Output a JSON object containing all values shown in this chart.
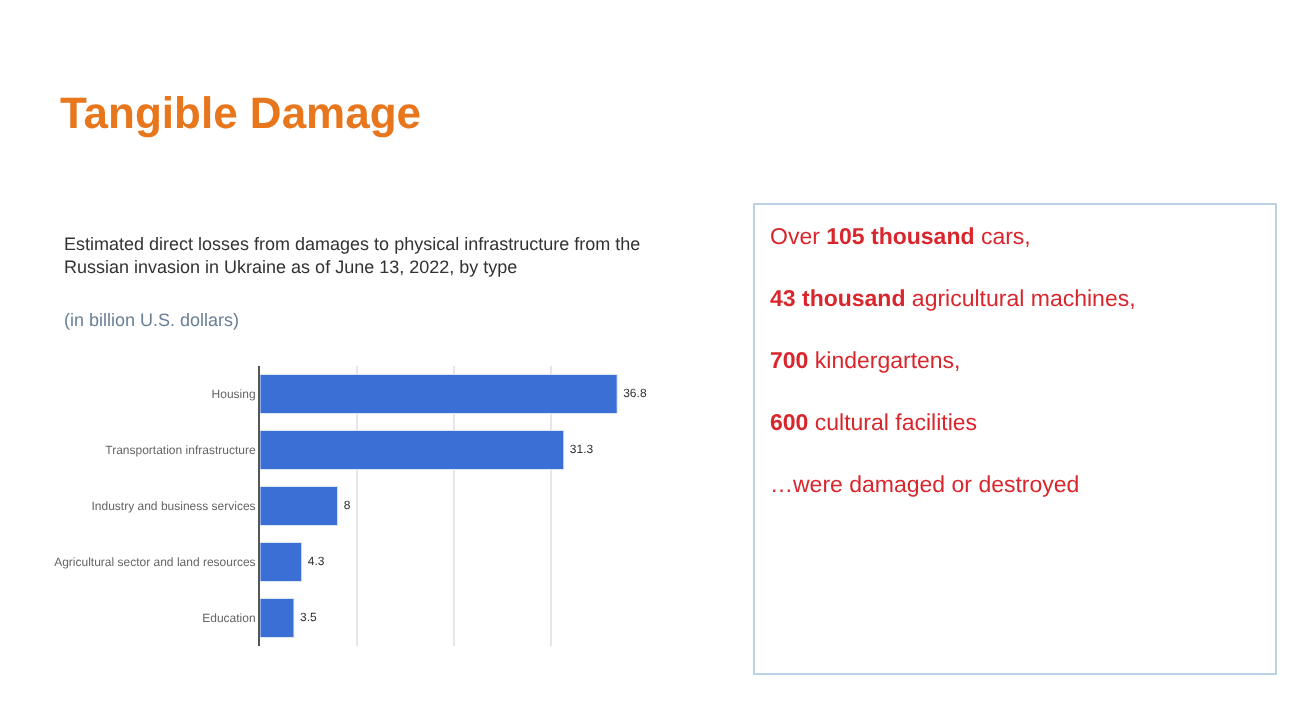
{
  "chart_data": [
    {
      "type": "bar",
      "orientation": "horizontal",
      "title": "Estimated direct losses from damages to physical infrastructure from the Russian invasion in Ukraine as of June 13, 2022, by type",
      "subtitle": "(in billion U.S. dollars)",
      "annotations": [
        "Tangible Damage"
      ],
      "categories": [
        "Housing",
        "Transportation infrastructure",
        "Industry and business services",
        "Agricultural sector and land resources",
        "Education"
      ],
      "values": [
        36.8,
        31.3,
        8,
        4.3,
        3.5
      ],
      "color": "#3b6fd6",
      "data_labels": true,
      "grid": "x",
      "tick_labels": "y"
    },
    {
      "type": "other",
      "annotations": [
        "Over 105 thousand cars,",
        "43 thousand agricultural machines,",
        "700 kindergartens,",
        "600 cultural facilities",
        "…were damaged or destroyed"
      ]
    }
  ]
}
